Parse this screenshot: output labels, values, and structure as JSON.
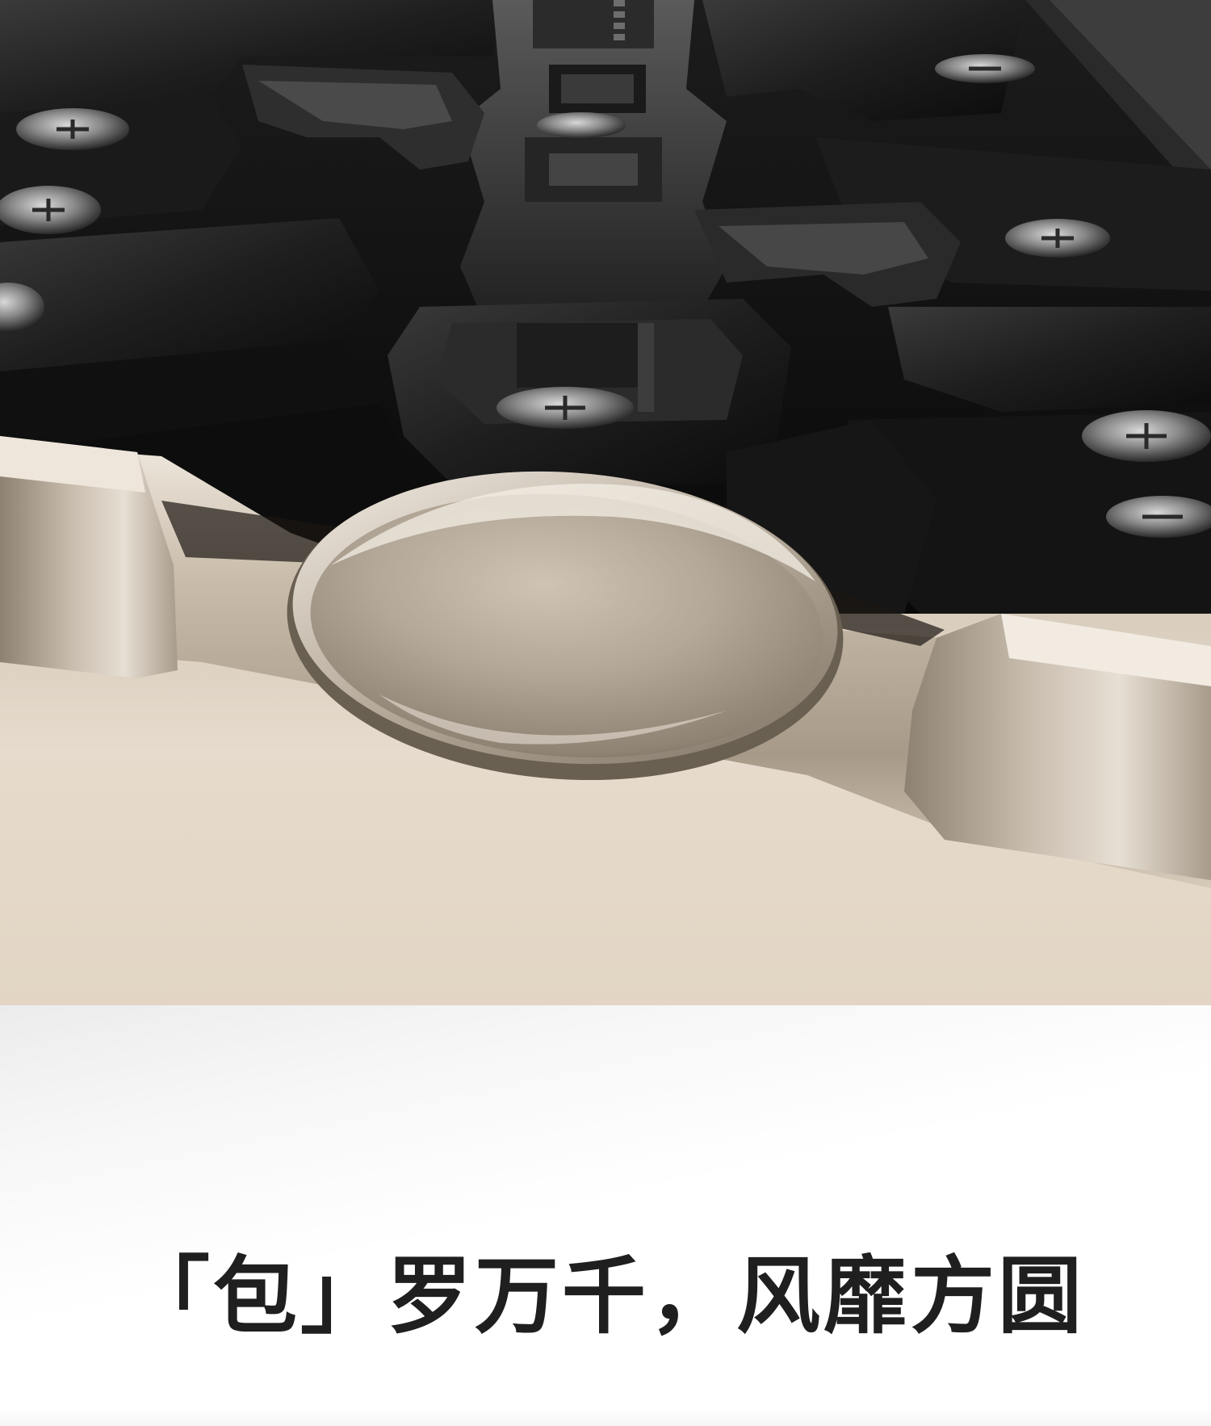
{
  "headline": {
    "text": "「包」罗万千，风靡方圆"
  },
  "colors": {
    "mechanism_dark": "#141414",
    "metal_champagne": "#cfc3b4",
    "panel_beige": "#e6dacb",
    "headline_text": "#1f1f1f"
  },
  "icons": {
    "hero": "hinge-mechanism-illustration"
  }
}
